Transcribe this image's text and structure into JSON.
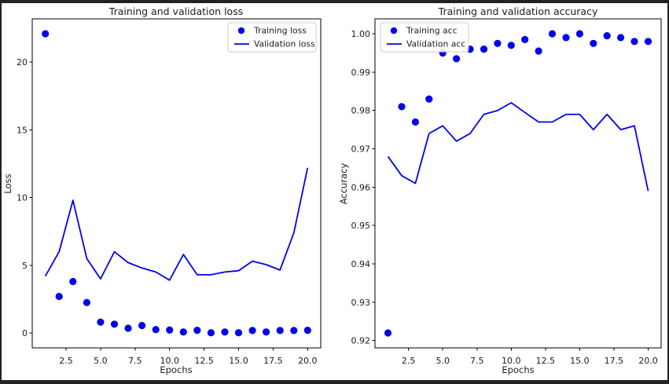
{
  "figure": {
    "background": "#ffffff",
    "border_color": "#222222",
    "accent_blue": "#0000ee",
    "text_color": "#1c1c1c"
  },
  "chart_data": [
    {
      "type": "scatter",
      "title": "Training and validation loss",
      "xlabel": "Epochs",
      "ylabel": "Loss",
      "grid": false,
      "legend_position": "top-right",
      "x": [
        1,
        2,
        3,
        4,
        5,
        6,
        7,
        8,
        9,
        10,
        11,
        12,
        13,
        14,
        15,
        16,
        17,
        18,
        19,
        20
      ],
      "xlim": [
        0.05,
        20.95
      ],
      "ylim": [
        -1.1,
        23.2
      ],
      "xticks": [
        2.5,
        5.0,
        7.5,
        10.0,
        12.5,
        15.0,
        17.5,
        20.0
      ],
      "xtick_labels": [
        "2.5",
        "5.0",
        "7.5",
        "10.0",
        "12.5",
        "15.0",
        "17.5",
        "20.0"
      ],
      "yticks": [
        0,
        5,
        10,
        15,
        20
      ],
      "ytick_labels": [
        "0",
        "5",
        "10",
        "15",
        "20"
      ],
      "series": [
        {
          "name": "Training loss",
          "style": "scatter",
          "color": "#0000ee",
          "values": [
            22.1,
            2.7,
            3.8,
            2.25,
            0.8,
            0.65,
            0.35,
            0.55,
            0.25,
            0.22,
            0.08,
            0.2,
            0.02,
            0.08,
            0.02,
            0.18,
            0.08,
            0.18,
            0.18,
            0.2
          ]
        },
        {
          "name": "Validation loss",
          "style": "line",
          "color": "#0000ee",
          "values": [
            4.2,
            6.0,
            9.8,
            5.5,
            4.0,
            6.0,
            5.2,
            4.8,
            4.5,
            3.9,
            5.8,
            4.3,
            4.3,
            4.5,
            4.6,
            5.3,
            5.05,
            4.65,
            7.4,
            12.2
          ]
        }
      ]
    },
    {
      "type": "scatter",
      "title": "Training and validation accuracy",
      "xlabel": "Epochs",
      "ylabel": "Accuracy",
      "grid": false,
      "legend_position": "top-left",
      "x": [
        1,
        2,
        3,
        4,
        5,
        6,
        7,
        8,
        9,
        10,
        11,
        12,
        13,
        14,
        15,
        16,
        17,
        18,
        19,
        20
      ],
      "xlim": [
        0.05,
        20.95
      ],
      "ylim": [
        0.9181,
        1.0039
      ],
      "xticks": [
        2.5,
        5.0,
        7.5,
        10.0,
        12.5,
        15.0,
        17.5,
        20.0
      ],
      "xtick_labels": [
        "2.5",
        "5.0",
        "7.5",
        "10.0",
        "12.5",
        "15.0",
        "17.5",
        "20.0"
      ],
      "yticks": [
        0.92,
        0.93,
        0.94,
        0.95,
        0.96,
        0.97,
        0.98,
        0.99,
        1.0
      ],
      "ytick_labels": [
        "0.92",
        "0.93",
        "0.94",
        "0.95",
        "0.96",
        "0.97",
        "0.98",
        "0.99",
        "1.00"
      ],
      "series": [
        {
          "name": "Training acc",
          "style": "scatter",
          "color": "#0000ee",
          "values": [
            0.922,
            0.981,
            0.977,
            0.983,
            0.995,
            0.9935,
            0.996,
            0.996,
            0.9975,
            0.997,
            0.9985,
            0.9955,
            1.0,
            0.999,
            1.0,
            0.9975,
            0.9995,
            0.999,
            0.998,
            0.998
          ]
        },
        {
          "name": "Validation acc",
          "style": "line",
          "color": "#0000ee",
          "values": [
            0.968,
            0.963,
            0.961,
            0.974,
            0.976,
            0.972,
            0.974,
            0.979,
            0.98,
            0.982,
            0.9795,
            0.977,
            0.977,
            0.979,
            0.979,
            0.975,
            0.979,
            0.975,
            0.976,
            0.959
          ]
        }
      ]
    }
  ]
}
